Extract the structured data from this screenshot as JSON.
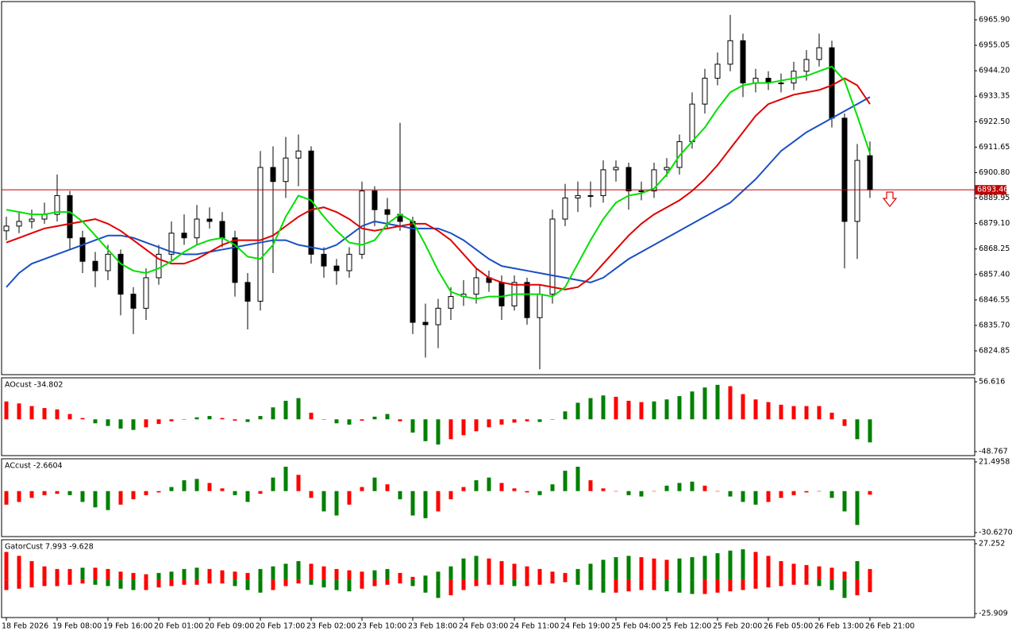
{
  "chart_data": [
    {
      "type": "candlestick",
      "categories": [
        "18 Feb 2026",
        null,
        null,
        null,
        "19 Feb 08:00",
        null,
        null,
        null,
        "19 Feb 16:00",
        null,
        null,
        null,
        "20 Feb 01:00",
        null,
        null,
        null,
        "20 Feb 09:00",
        null,
        null,
        null,
        "20 Feb 17:00",
        null,
        null,
        null,
        "23 Feb 02:00",
        null,
        null,
        null,
        "23 Feb 10:00",
        null,
        null,
        null,
        "23 Feb 18:00",
        null,
        null,
        null,
        "24 Feb 03:00",
        null,
        null,
        null,
        "24 Feb 11:00",
        null,
        null,
        null,
        "24 Feb 19:00",
        null,
        null,
        null,
        "25 Feb 04:00",
        null,
        null,
        null,
        "25 Feb 12:00",
        null,
        null,
        null,
        "25 Feb 20:00",
        null,
        null,
        null,
        "26 Feb 05:00",
        null,
        null,
        null,
        "26 Feb 13:00",
        null,
        null,
        null,
        "26 Feb 21:00"
      ],
      "open": [
        6876,
        6878,
        6880,
        6881,
        6883,
        6891,
        6873,
        6863,
        6859,
        6866,
        6849,
        6843,
        6856,
        6866,
        6875,
        6873,
        6881,
        6880,
        6873,
        6854,
        6846,
        6903,
        6897,
        6907,
        6910,
        6866,
        6861,
        6859,
        6866,
        6893,
        6885,
        6883,
        6880,
        6837,
        6836,
        6843,
        6848,
        6849,
        6856,
        6854,
        6844,
        6854,
        6839,
        6849,
        6881,
        6890,
        6891,
        6891,
        6902,
        6903,
        6893,
        6893,
        6902,
        6903,
        6914,
        6930,
        6941,
        6947,
        6957,
        6939,
        6941,
        6939,
        6939,
        6944,
        6949,
        6954,
        6924,
        6880,
        6908
      ],
      "high": [
        6882,
        6884,
        6885,
        6888,
        6900,
        6893,
        6876,
        6867,
        6870,
        6868,
        6852,
        6860,
        6870,
        6880,
        6883,
        6887,
        6886,
        6884,
        6876,
        6858,
        6910,
        6912,
        6916,
        6917,
        6912,
        6869,
        6864,
        6869,
        6897,
        6895,
        6890,
        6922,
        6882,
        6845,
        6847,
        6852,
        6855,
        6860,
        6859,
        6857,
        6857,
        6856,
        6853,
        6885,
        6896,
        6897,
        6897,
        6906,
        6906,
        6905,
        6897,
        6905,
        6907,
        6917,
        6935,
        6945,
        6952,
        6968,
        6960,
        6945,
        6944,
        6943,
        6948,
        6953,
        6960,
        6957,
        6926,
        6913,
        6914
      ],
      "low": [
        6872,
        6875,
        6877,
        6879,
        6880,
        6868,
        6858,
        6852,
        6855,
        6840,
        6832,
        6838,
        6853,
        6863,
        6870,
        6870,
        6877,
        6869,
        6848,
        6834,
        6842,
        6858,
        6890,
        6895,
        6862,
        6856,
        6853,
        6856,
        6864,
        6878,
        6877,
        6876,
        6832,
        6822,
        6826,
        6838,
        6844,
        6845,
        6850,
        6838,
        6842,
        6836,
        6817,
        6845,
        6878,
        6884,
        6886,
        6888,
        6897,
        6885,
        6889,
        6890,
        6899,
        6900,
        6911,
        6926,
        6938,
        6944,
        6933,
        6935,
        6936,
        6935,
        6936,
        6940,
        6946,
        6920,
        6860,
        6864,
        6890
      ],
      "close": [
        6878,
        6880,
        6881,
        6883,
        6891,
        6873,
        6863,
        6859,
        6866,
        6849,
        6843,
        6856,
        6866,
        6875,
        6873,
        6881,
        6880,
        6873,
        6854,
        6846,
        6903,
        6897,
        6907,
        6910,
        6866,
        6861,
        6859,
        6866,
        6893,
        6885,
        6883,
        6880,
        6837,
        6836,
        6843,
        6848,
        6849,
        6856,
        6854,
        6844,
        6854,
        6839,
        6849,
        6881,
        6890,
        6891,
        6891,
        6902,
        6903,
        6893,
        6893,
        6902,
        6903,
        6914,
        6930,
        6941,
        6947,
        6957,
        6939,
        6941,
        6939,
        6939,
        6944,
        6949,
        6954,
        6924,
        6880,
        6906,
        6893.46
      ],
      "series": [
        {
          "color": "#1a4fc4",
          "values": [
            6852,
            6858,
            6862,
            6864,
            6866,
            6868,
            6870,
            6872,
            6874,
            6874,
            6873,
            6871,
            6869,
            6867,
            6866,
            6866,
            6867,
            6868,
            6869,
            6870,
            6871,
            6872,
            6872,
            6870,
            6869,
            6868,
            6870,
            6874,
            6878,
            6880,
            6879,
            6878,
            6877,
            6877,
            6877,
            6875,
            6872,
            6868,
            6864,
            6861,
            6860,
            6859,
            6858,
            6857,
            6856,
            6855,
            6854,
            6856,
            6860,
            6864,
            6867,
            6870,
            6873,
            6876,
            6879,
            6882,
            6885,
            6888,
            6893,
            6898,
            6904,
            6910,
            6914,
            6918,
            6921,
            6924,
            6927,
            6930,
            6933
          ]
        },
        {
          "color": "#e00000",
          "values": [
            6871,
            6873,
            6875,
            6877,
            6878,
            6879,
            6880,
            6881,
            6879,
            6876,
            6872,
            6868,
            6864,
            6862,
            6862,
            6864,
            6867,
            6870,
            6872,
            6872,
            6872,
            6874,
            6878,
            6882,
            6885,
            6886,
            6884,
            6881,
            6877,
            6876,
            6877,
            6878,
            6879,
            6879,
            6876,
            6872,
            6866,
            6860,
            6856,
            6854,
            6853,
            6853,
            6853,
            6852,
            6851,
            6852,
            6856,
            6862,
            6868,
            6874,
            6879,
            6883,
            6886,
            6889,
            6893,
            6898,
            6904,
            6911,
            6918,
            6925,
            6930,
            6932,
            6934,
            6935,
            6936,
            6938,
            6941,
            6938,
            6930
          ]
        },
        {
          "color": "#00e000",
          "values": [
            6885,
            6884,
            6883,
            6883,
            6884,
            6884,
            6880,
            6874,
            6868,
            6862,
            6859,
            6858,
            6860,
            6863,
            6867,
            6870,
            6872,
            6873,
            6870,
            6865,
            6864,
            6870,
            6882,
            6891,
            6889,
            6882,
            6876,
            6871,
            6870,
            6872,
            6879,
            6883,
            6880,
            6870,
            6859,
            6850,
            6848,
            6847,
            6848,
            6848,
            6849,
            6849,
            6849,
            6848,
            6852,
            6862,
            6872,
            6881,
            6888,
            6891,
            6892,
            6894,
            6900,
            6908,
            6914,
            6920,
            6928,
            6935,
            6938,
            6939,
            6939,
            6940,
            6941,
            6942,
            6944,
            6946,
            6940,
            6925,
            6909
          ]
        }
      ],
      "ylim": [
        6814.71,
        6973.67
      ],
      "yticks": [
        {
          "value": 6965.9,
          "label": "6965.90"
        },
        6955.05,
        {
          "value": 6944.2,
          "label": "6944.20"
        },
        6933.35,
        {
          "value": 6922.5,
          "label": "6922.50"
        },
        6911.65,
        {
          "value": 6900.8,
          "label": "6900.80"
        },
        6889.95,
        {
          "value": 6879.1,
          "label": "6879.10"
        },
        6868.25,
        {
          "value": 6857.4,
          "label": "6857.40"
        },
        6846.55,
        {
          "value": 6835.7,
          "label": "6835.70"
        },
        6824.85
      ],
      "last_price": 6893.46,
      "last_price_color": "#c00000",
      "bull_color": "#ffffff",
      "bear_color": "#000000"
    },
    {
      "type": "histogram",
      "title": "AOcust -34.802",
      "up_color": "#008000",
      "down_color": "#ff0000",
      "values": [
        27,
        24,
        20,
        17,
        15,
        8,
        2,
        -6,
        -10,
        -14,
        -16,
        -12,
        -7,
        -3,
        0,
        3,
        5,
        2,
        -2,
        -4,
        5,
        18,
        28,
        32,
        10,
        0,
        -6,
        -8,
        -2,
        4,
        8,
        -3,
        -20,
        -33,
        -38,
        -30,
        -24,
        -18,
        -12,
        -8,
        -5,
        -3,
        -4,
        0,
        12,
        25,
        32,
        36,
        34,
        28,
        26,
        27,
        30,
        35,
        42,
        48,
        52,
        50,
        38,
        30,
        26,
        22,
        20,
        20,
        20,
        10,
        -10,
        -30,
        -34.802
      ],
      "ylim": [
        -54.76,
        62.6
      ],
      "yticks": [
        56.616,
        -48.767
      ]
    },
    {
      "type": "histogram",
      "title": "ACcust -2.6604",
      "up_color": "#008000",
      "down_color": "#ff0000",
      "values": [
        -10,
        -8,
        -5,
        -3,
        -2,
        -3,
        -8,
        -12,
        -14,
        -10,
        -6,
        -3,
        -1,
        3,
        8,
        9,
        6,
        2,
        -3,
        -8,
        -2,
        10,
        18,
        12,
        -5,
        -15,
        -18,
        -10,
        3,
        10,
        5,
        -6,
        -18,
        -20,
        -15,
        -6,
        3,
        8,
        10,
        6,
        2,
        -1,
        -3,
        5,
        15,
        18,
        8,
        2,
        0,
        -3,
        -4,
        0,
        4,
        6,
        7,
        4,
        0,
        -4,
        -8,
        -10,
        -8,
        -5,
        -3,
        -1,
        0,
        -5,
        -15,
        -25,
        -2.6604
      ],
      "ylim": [
        -33.55,
        23.84
      ],
      "yticks": [
        21.4958,
        {
          "value": -30.627,
          "label": "-30.6270"
        }
      ]
    },
    {
      "type": "gator",
      "title": "GatorCust 7.993 -9.628",
      "up_color": "#008000",
      "down_color": "#ff0000",
      "series": [
        {
          "values": [
            21,
            18,
            14,
            10,
            8,
            8,
            9,
            9,
            8,
            6,
            5,
            4,
            5,
            6,
            8,
            9,
            8,
            7,
            6,
            5,
            8,
            10,
            12,
            14,
            12,
            10,
            8,
            7,
            6,
            7,
            8,
            5,
            2,
            3,
            6,
            10,
            16,
            18,
            16,
            14,
            12,
            10,
            8,
            6,
            5,
            8,
            12,
            15,
            17,
            18,
            17,
            16,
            15,
            16,
            17,
            18,
            20,
            22,
            23,
            21,
            18,
            14,
            12,
            11,
            10,
            9,
            6,
            14,
            7.993
          ]
        },
        {
          "values": [
            -8,
            -7,
            -6,
            -5,
            -5,
            -4,
            -3,
            -4,
            -5,
            -7,
            -8,
            -8,
            -6,
            -5,
            -4,
            -4,
            -3,
            -3,
            -5,
            -8,
            -10,
            -8,
            -5,
            -3,
            -4,
            -6,
            -8,
            -9,
            -7,
            -5,
            -4,
            -3,
            -5,
            -10,
            -14,
            -12,
            -8,
            -5,
            -4,
            -4,
            -5,
            -5,
            -4,
            -3,
            -2,
            -4,
            -8,
            -10,
            -10,
            -9,
            -8,
            -8,
            -9,
            -10,
            -11,
            -11,
            -10,
            -9,
            -8,
            -7,
            -6,
            -5,
            -4,
            -4,
            -5,
            -8,
            -14,
            -12,
            -9.628
          ]
        }
      ],
      "ylim": [
        -28.93,
        30.27
      ],
      "yticks": [
        27.252,
        -25.909
      ]
    }
  ]
}
